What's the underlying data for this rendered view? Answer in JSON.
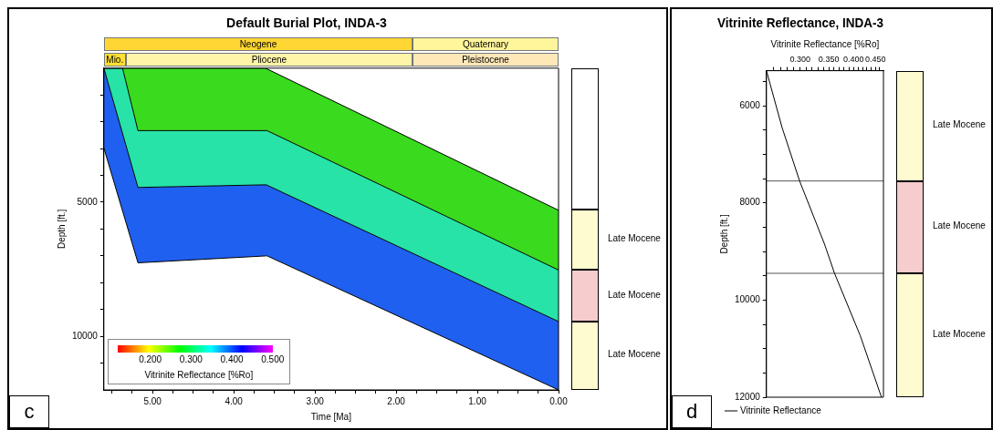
{
  "chart_data": [
    {
      "type": "area",
      "title": "Default Burial Plot, INDA-3",
      "xlabel": "Time [Ma]",
      "ylabel": "Depth [ft.]",
      "clabel": "Vitrinite Reflectance [%Ro]",
      "series": [
        {
          "type": "line",
          "color": "#000000",
          "x": [
            5.6,
            3.61,
            0
          ],
          "values": [
            0,
            0,
            5300
          ]
        },
        {
          "color": "#3ada1e",
          "x": [
            5.6,
            5.37,
            5.18,
            3.59,
            0
          ],
          "values": [
            0,
            0,
            2330,
            2330,
            7530
          ]
        },
        {
          "color": "#27e3a8",
          "x": [
            5.6,
            5.18,
            3.6,
            0
          ],
          "values": [
            0,
            4450,
            4350,
            9450
          ]
        },
        {
          "color": "#2060f0",
          "x": [
            5.6,
            5.18,
            3.59,
            0
          ],
          "values": [
            2980,
            7260,
            7000,
            12000
          ]
        }
      ],
      "xlim": [
        5.6,
        0
      ],
      "xticks": [
        {
          "value": 5.5,
          "label": null
        },
        {
          "value": 5.25,
          "label": null
        },
        {
          "value": 5,
          "label": "5.00"
        },
        {
          "value": 4.75,
          "label": null
        },
        {
          "value": 4.5,
          "label": null
        },
        {
          "value": 4.25,
          "label": null
        },
        {
          "value": 4,
          "label": "4.00"
        },
        {
          "value": 3.75,
          "label": null
        },
        {
          "value": 3.5,
          "label": null
        },
        {
          "value": 3.25,
          "label": null
        },
        {
          "value": 3,
          "label": "3.00"
        },
        {
          "value": 2.75,
          "label": null
        },
        {
          "value": 2.5,
          "label": null
        },
        {
          "value": 2.25,
          "label": null
        },
        {
          "value": 2,
          "label": "2.00"
        },
        {
          "value": 1.75,
          "label": null
        },
        {
          "value": 1.5,
          "label": null
        },
        {
          "value": 1.25,
          "label": null
        },
        {
          "value": 1,
          "label": "1.00"
        },
        {
          "value": 0.75,
          "label": null
        },
        {
          "value": 0.5,
          "label": null
        },
        {
          "value": 0.25,
          "label": null
        },
        {
          "value": 0,
          "label": "0.00"
        }
      ],
      "ylim": [
        12000,
        0
      ],
      "yticks": [
        {
          "value": 1000,
          "label": null
        },
        {
          "value": 2000,
          "label": null
        },
        {
          "value": 3000,
          "label": null
        },
        {
          "value": 4000,
          "label": null
        },
        5000,
        {
          "value": 6000,
          "label": null
        },
        {
          "value": 7000,
          "label": null
        },
        {
          "value": 8000,
          "label": null
        },
        {
          "value": 9000,
          "label": null
        },
        10000,
        {
          "value": 11000,
          "label": null
        }
      ],
      "annotations": [
        "Neogene",
        "Quaternary",
        "Mio.",
        "Pliocene",
        "Pleistocene",
        "Late Mocene",
        "Late Mocene",
        "Late Mocene",
        "0.200",
        "0.300",
        "0.400",
        "0.500",
        "c"
      ]
    },
    {
      "type": "line",
      "title": "Vitrinite Reflectance, INDA-3",
      "xlabel": "Vitrinite Reflectance [%Ro]",
      "ylabel": "Depth [ft.]",
      "log": "x",
      "legend": "bottom left",
      "series": [
        {
          "name": "Vitrinite Reflectance",
          "color": "#000000",
          "x": [
            0.25,
            0.272,
            0.299,
            0.342,
            0.361,
            0.415,
            0.465
          ],
          "values": [
            5280,
            6450,
            7550,
            8850,
            9450,
            10740,
            12000
          ]
        }
      ],
      "xlim": [
        0.25,
        0.47
      ],
      "xticks": [
        {
          "value": 0.26,
          "label": null
        },
        {
          "value": 0.27,
          "label": null
        },
        {
          "value": 0.28,
          "label": null
        },
        {
          "value": 0.29,
          "label": null
        },
        {
          "value": 0.3,
          "label": "0.300"
        },
        {
          "value": 0.31,
          "label": null
        },
        {
          "value": 0.32,
          "label": null
        },
        {
          "value": 0.33,
          "label": null
        },
        {
          "value": 0.34,
          "label": null
        },
        {
          "value": 0.35,
          "label": "0.350"
        },
        {
          "value": 0.36,
          "label": null
        },
        {
          "value": 0.37,
          "label": null
        },
        {
          "value": 0.38,
          "label": null
        },
        {
          "value": 0.39,
          "label": null
        },
        {
          "value": 0.4,
          "label": "0.400"
        },
        {
          "value": 0.41,
          "label": null
        },
        {
          "value": 0.42,
          "label": null
        },
        {
          "value": 0.43,
          "label": null
        },
        {
          "value": 0.44,
          "label": null
        },
        {
          "value": 0.45,
          "label": "0.450"
        },
        {
          "value": 0.46,
          "label": null
        }
      ],
      "ylim": [
        12000,
        5280
      ],
      "yticks": [
        {
          "value": 5500,
          "label": null
        },
        6000,
        {
          "value": 6500,
          "label": null
        },
        {
          "value": 7000,
          "label": null
        },
        {
          "value": 7500,
          "label": null
        },
        8000,
        {
          "value": 8500,
          "label": null
        },
        {
          "value": 9000,
          "label": null
        },
        {
          "value": 9500,
          "label": null
        },
        10000,
        {
          "value": 10500,
          "label": null
        },
        {
          "value": 11000,
          "label": null
        },
        {
          "value": 11500,
          "label": null
        },
        12000
      ],
      "ref_lines": [
        {
          "axis": "y",
          "value": 7550,
          "color": "#555555"
        },
        {
          "axis": "y",
          "value": 9450,
          "color": "#555555"
        }
      ],
      "annotations": [
        "Late Mocene",
        "Late Mocene",
        "Late Mocene",
        "d"
      ]
    }
  ]
}
